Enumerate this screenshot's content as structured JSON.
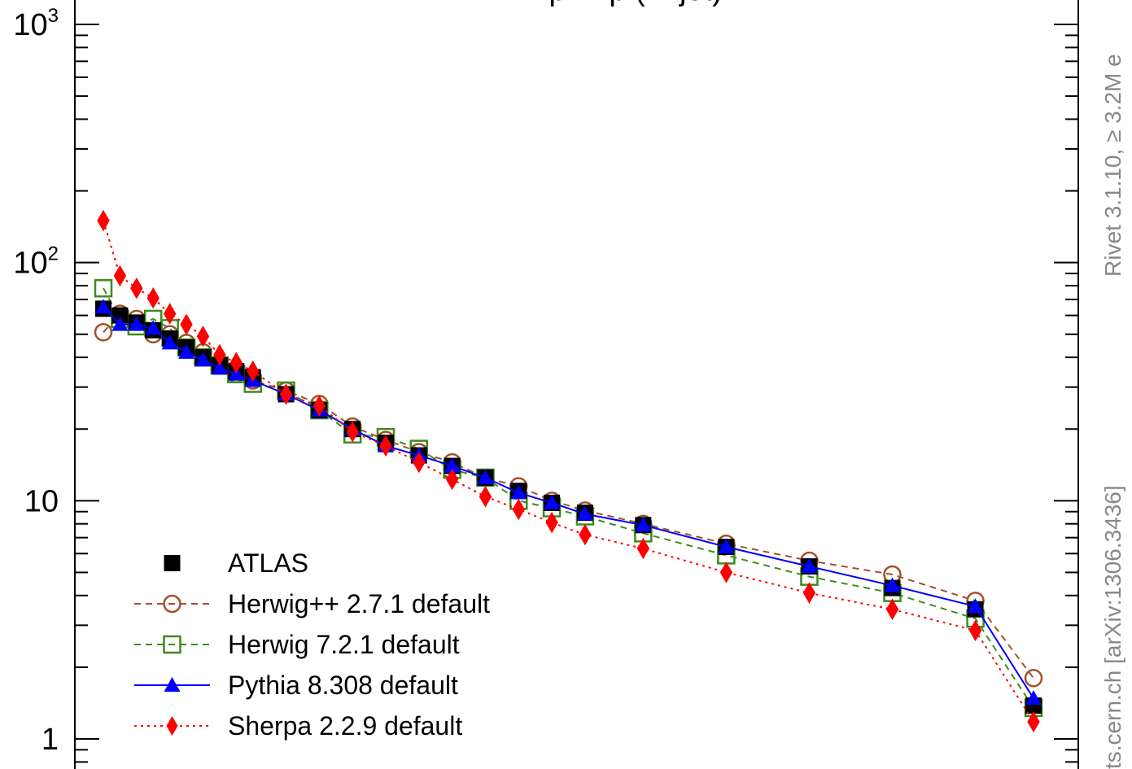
{
  "chart_data": {
    "type": "line",
    "title": "... p ... p (... jet)",
    "ylim": [
      1,
      1000
    ],
    "yscale": "log",
    "y_tick_labels": [
      {
        "value": 1000,
        "base": "10",
        "exp": "3"
      },
      {
        "value": 100,
        "base": "10",
        "exp": "2"
      },
      {
        "value": 10,
        "base": "10",
        "exp": ""
      },
      {
        "value": 1,
        "base": "1",
        "exp": ""
      }
    ],
    "x": [
      1,
      2,
      3,
      4,
      5,
      6,
      7,
      8,
      9,
      10,
      12,
      14,
      16,
      18,
      20,
      22,
      24,
      26,
      28,
      30,
      33.5,
      38.5,
      43.5,
      48.5,
      53.5,
      57
    ],
    "series": [
      {
        "name": "ATLAS",
        "color": "#000000",
        "marker": "square-filled",
        "line": "none",
        "values": [
          64,
          60,
          56,
          52,
          48,
          44,
          40,
          37,
          35,
          33,
          28,
          24,
          20,
          17.5,
          15.5,
          14,
          12.5,
          11,
          9.8,
          8.9,
          7.9,
          6.4,
          5.3,
          4.3,
          3.5,
          1.38
        ]
      },
      {
        "name": "Herwig++ 2.7.1 default",
        "color": "#a0522d",
        "marker": "circle-open",
        "line": "dashed",
        "values": [
          51,
          61,
          58,
          50,
          50,
          46,
          42,
          38,
          34,
          32,
          29,
          25.5,
          20.5,
          18,
          16,
          14.5,
          12.5,
          11.5,
          10,
          9.1,
          8.0,
          6.6,
          5.6,
          4.9,
          3.8,
          1.8
        ]
      },
      {
        "name": "Herwig 7.2.1 default",
        "color": "#3c8c1e",
        "marker": "square-open",
        "line": "dashed",
        "values": [
          78,
          58,
          54,
          58,
          53,
          44,
          40,
          37,
          34,
          31,
          29,
          24,
          19,
          18.5,
          16.5,
          13.5,
          12.5,
          10,
          9.3,
          8.6,
          7.3,
          5.9,
          4.8,
          4.1,
          3.2,
          1.35
        ]
      },
      {
        "name": "Pythia 8.308 default",
        "color": "#0000ff",
        "marker": "triangle-filled",
        "line": "solid",
        "values": [
          65,
          55,
          55,
          53,
          46,
          42,
          39,
          36,
          34,
          32,
          28,
          24,
          20,
          17,
          15.5,
          14,
          12.5,
          10.8,
          9.8,
          8.8,
          7.9,
          6.4,
          5.3,
          4.4,
          3.6,
          1.48
        ]
      },
      {
        "name": "Sherpa 2.2.9 default",
        "color": "#ff0000",
        "marker": "diamond-filled",
        "line": "dotted",
        "values": [
          150,
          88,
          78,
          71,
          61,
          55,
          49,
          41,
          38,
          35,
          28,
          25,
          19.5,
          17,
          14.5,
          12.3,
          10.4,
          9.2,
          8.1,
          7.2,
          6.3,
          5.0,
          4.1,
          3.5,
          2.85,
          1.18
        ]
      }
    ],
    "legend_position": "bottom-left"
  },
  "side_labels": {
    "upper": "Rivet 3.1.10, ≥ 3.2M e",
    "lower": "ts.cern.ch [arXiv:1306.3436]"
  }
}
